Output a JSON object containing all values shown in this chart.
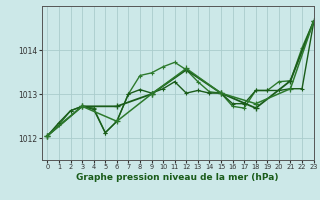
{
  "title": "Graphe pression niveau de la mer (hPa)",
  "background_color": "#cce8e8",
  "grid_color": "#aacccc",
  "xlim": [
    -0.5,
    23
  ],
  "ylim": [
    1011.5,
    1015.0
  ],
  "yticks": [
    1012,
    1013,
    1014
  ],
  "xticks": [
    0,
    1,
    2,
    3,
    4,
    5,
    6,
    7,
    8,
    9,
    10,
    11,
    12,
    13,
    14,
    15,
    16,
    17,
    18,
    19,
    20,
    21,
    22,
    23
  ],
  "series1_x": [
    0,
    1,
    2,
    3,
    4,
    5,
    6,
    7,
    8,
    9,
    10,
    11,
    12,
    13,
    14,
    15,
    16,
    17,
    18,
    19,
    20,
    21,
    22,
    23
  ],
  "series1_y": [
    1012.05,
    1012.3,
    1012.62,
    1012.72,
    1012.68,
    1012.12,
    1012.38,
    1013.0,
    1013.42,
    1013.48,
    1013.62,
    1013.72,
    1013.55,
    1013.28,
    1013.05,
    1013.02,
    1012.72,
    1012.68,
    1013.08,
    1013.08,
    1013.28,
    1013.3,
    1014.05,
    1014.65
  ],
  "series1_color": "#2d7a2d",
  "series2_x": [
    0,
    1,
    2,
    3,
    4,
    5,
    6,
    7,
    8,
    9,
    10,
    11,
    12,
    13,
    14,
    15,
    16,
    17,
    18,
    19,
    20,
    21,
    22,
    23
  ],
  "series2_y": [
    1012.05,
    1012.35,
    1012.62,
    1012.72,
    1012.65,
    1012.12,
    1012.38,
    1013.0,
    1013.1,
    1013.02,
    1013.12,
    1013.28,
    1013.02,
    1013.08,
    1013.02,
    1013.02,
    1012.78,
    1012.78,
    1013.08,
    1013.08,
    1013.08,
    1013.12,
    1013.12,
    1014.62
  ],
  "series2_color": "#1a5c1a",
  "series3_x": [
    0,
    3,
    6,
    9,
    12,
    15,
    18,
    21,
    23
  ],
  "series3_y": [
    1012.05,
    1012.72,
    1012.72,
    1013.0,
    1013.55,
    1013.02,
    1012.68,
    1013.3,
    1014.65
  ],
  "series3_color": "#1a5c1a",
  "series4_x": [
    0,
    3,
    6,
    9,
    12,
    15,
    18,
    21,
    23
  ],
  "series4_y": [
    1012.05,
    1012.72,
    1012.38,
    1013.0,
    1013.58,
    1013.02,
    1012.78,
    1013.12,
    1014.65
  ],
  "series4_color": "#2d7a2d",
  "ylabel_fontsize": 5.5,
  "xlabel_fontsize": 6.5
}
